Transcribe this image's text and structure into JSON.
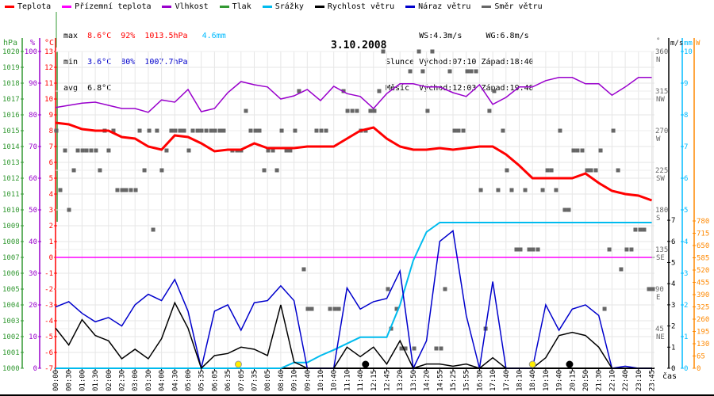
{
  "legend": [
    {
      "label": "Teplota",
      "color": "#ff0000"
    },
    {
      "label": "Přízemní teplota",
      "color": "#ff00ff"
    },
    {
      "label": "Vlhkost",
      "color": "#9900cc"
    },
    {
      "label": "Tlak",
      "color": "#339933"
    },
    {
      "label": "Srážky",
      "color": "#00bbee"
    },
    {
      "label": "Rychlost větru",
      "color": "#000000"
    },
    {
      "label": "Náraz větru",
      "color": "#0000cc"
    },
    {
      "label": "Směr větru",
      "color": "#666666"
    }
  ],
  "stats": {
    "max_label": "max",
    "min_label": "min",
    "avg_label": "avg",
    "max_temp": "8.6°C",
    "max_hum": "92%",
    "max_press": "1013.5hPa",
    "max_rain": "4.6mm",
    "min_temp": "3.6°C",
    "min_hum": "80%",
    "min_press": "1007.7hPa",
    "avg_temp": "6.8°C",
    "ws": "WS:4.3m/s",
    "wg": "WG:6.8m/s",
    "sun_label": "Slunce",
    "sun_rise": "Východ:07:10",
    "sun_set": "Západ:18:40",
    "moon_label": "Měsíc",
    "moon_rise": "Východ:12:03",
    "moon_set": "Západ:19:48"
  },
  "chart_data": {
    "type": "line",
    "title": "3.10.2008",
    "xlabel": "čas",
    "x_tick_labels": [
      "00:00",
      "00:30",
      "01:00",
      "01:30",
      "02:00",
      "02:30",
      "03:00",
      "03:30",
      "04:00",
      "04:30",
      "05:00",
      "05:35",
      "06:05",
      "06:35",
      "07:05",
      "07:35",
      "08:05",
      "08:40",
      "09:10",
      "09:40",
      "10:10",
      "10:40",
      "11:10",
      "11:40",
      "12:15",
      "12:45",
      "13:20",
      "13:50",
      "14:20",
      "14:55",
      "15:25",
      "15:55",
      "16:30",
      "17:10",
      "17:40",
      "18:10",
      "18:40",
      "19:10",
      "19:40",
      "20:15",
      "20:50",
      "21:30",
      "22:10",
      "22:40",
      "23:10",
      "23:45"
    ],
    "axes": {
      "hPa": {
        "label": "hPa",
        "range": [
          1000,
          1020
        ],
        "ticks": [
          1000,
          1001,
          1002,
          1003,
          1004,
          1005,
          1006,
          1007,
          1008,
          1009,
          1010,
          1011,
          1012,
          1013,
          1014,
          1015,
          1016,
          1017,
          1018,
          1019,
          1020
        ]
      },
      "pct": {
        "label": "%",
        "range": [
          0,
          100
        ],
        "ticks": [
          0,
          10,
          20,
          30,
          40,
          50,
          60,
          70,
          80,
          90,
          100
        ]
      },
      "temp": {
        "label": "°C",
        "range": [
          -7,
          13
        ],
        "ticks": [
          -7,
          -6,
          -5,
          -4,
          -3,
          -2,
          -1,
          0,
          1,
          2,
          3,
          4,
          5,
          6,
          7,
          8,
          9,
          10,
          11,
          12,
          13
        ]
      },
      "dir": {
        "label": "°",
        "range": [
          0,
          360
        ],
        "ticks": [
          {
            "v": 360,
            "t": "360",
            "c": "N"
          },
          {
            "v": 315,
            "t": "315",
            "c": "NW"
          },
          {
            "v": 270,
            "t": "270",
            "c": "W"
          },
          {
            "v": 225,
            "t": "225",
            "c": "SW"
          },
          {
            "v": 180,
            "t": "180",
            "c": "S"
          },
          {
            "v": 135,
            "t": "135",
            "c": "SE"
          },
          {
            "v": 90,
            "t": "90",
            "c": "E"
          },
          {
            "v": 45,
            "t": "45",
            "c": "NE"
          }
        ]
      },
      "ms": {
        "label": "m/s",
        "range": [
          0,
          7.5
        ],
        "ticks": [
          0,
          1,
          2,
          3,
          4,
          5,
          6,
          7
        ]
      },
      "mm": {
        "label": "mm",
        "range": [
          0,
          10
        ],
        "ticks": [
          0,
          1,
          2,
          3,
          4,
          5,
          6,
          7,
          8,
          9,
          10
        ]
      },
      "W": {
        "label": "W",
        "range": [
          0,
          780
        ],
        "ticks": [
          0,
          65,
          130,
          195,
          260,
          325,
          390,
          455,
          520,
          585,
          650,
          715,
          780
        ]
      }
    },
    "series": [
      {
        "name": "Vlhkost",
        "axis": "pct",
        "color": "#9900cc",
        "values": [
          82.3,
          83,
          83.7,
          84,
          83,
          82,
          82,
          80.8,
          84.7,
          84,
          88,
          81,
          82,
          87,
          90.5,
          89.5,
          88.8,
          85,
          86,
          88,
          84.5,
          89,
          86.7,
          85.8,
          82,
          86.7,
          89.8,
          89.8,
          88.8,
          88.8,
          87,
          85.8,
          89.5,
          83.3,
          85.5,
          88.8,
          88.8,
          90.8,
          91.8,
          91.8,
          89.8,
          89.8,
          86.2,
          88.8,
          91.8,
          91.8
        ]
      },
      {
        "name": "Teplota",
        "axis": "temp",
        "color": "#ff0000",
        "values": [
          8.5,
          8.4,
          8.1,
          8.0,
          8.0,
          7.6,
          7.5,
          7.0,
          6.8,
          7.7,
          7.6,
          7.2,
          6.7,
          6.8,
          6.8,
          7.2,
          6.9,
          6.9,
          6.9,
          7.0,
          7.0,
          7.0,
          7.5,
          8.0,
          8.2,
          7.5,
          7.0,
          6.8,
          6.8,
          6.9,
          6.8,
          6.9,
          7.0,
          7.0,
          6.5,
          5.8,
          5.0,
          5.0,
          5.0,
          5.0,
          5.3,
          4.7,
          4.2,
          4.0,
          3.9,
          3.6
        ]
      },
      {
        "name": "Přízemní teplota",
        "axis": "temp",
        "color": "#ff00ff",
        "values": [
          0,
          0,
          0,
          0,
          0,
          0,
          0,
          0,
          0,
          0,
          0,
          0,
          0,
          0,
          0,
          0,
          0,
          0,
          0,
          0,
          0,
          0,
          0,
          0,
          0,
          0,
          0,
          0,
          0,
          0,
          0,
          0,
          0,
          0,
          0,
          0,
          0,
          0,
          0,
          0,
          0,
          0,
          0,
          0,
          0,
          0
        ]
      },
      {
        "name": "Srážky",
        "axis": "mm",
        "color": "#00bbee",
        "values": [
          0,
          0,
          0,
          0,
          0,
          0,
          0,
          0,
          0,
          0,
          0,
          0,
          0,
          0,
          0,
          0,
          0,
          0,
          0.18,
          0.18,
          0.4,
          0.58,
          0.78,
          0.98,
          0.98,
          0.98,
          2.0,
          3.4,
          4.3,
          4.6,
          4.6,
          4.6,
          4.6,
          4.6,
          4.6,
          4.6,
          4.6,
          4.6,
          4.6,
          4.6,
          4.6,
          4.6,
          4.6,
          4.6,
          4.6,
          4.6
        ]
      },
      {
        "name": "Náraz větru",
        "axis": "ms",
        "color": "#0000cc",
        "values": [
          2.9,
          3.15,
          2.6,
          2.2,
          2.4,
          2.0,
          3.0,
          3.5,
          3.2,
          4.2,
          2.7,
          0,
          2.7,
          3.0,
          1.8,
          3.1,
          3.2,
          3.9,
          3.2,
          0,
          0,
          0,
          3.8,
          2.8,
          3.15,
          3.3,
          4.6,
          0,
          1.3,
          6.0,
          6.5,
          2.5,
          0,
          4.1,
          0,
          0,
          0,
          3.0,
          1.8,
          2.8,
          3.0,
          2.5,
          0,
          0.1,
          0,
          0
        ]
      },
      {
        "name": "Rychlost větru",
        "axis": "ms",
        "color": "#000000",
        "values": [
          1.9,
          1.1,
          2.3,
          1.55,
          1.3,
          0.45,
          0.9,
          0.45,
          1.4,
          3.1,
          1.9,
          0,
          0.6,
          0.7,
          1.0,
          0.9,
          0.6,
          3.0,
          0.3,
          0,
          0,
          0,
          1.0,
          0.55,
          1.0,
          0.2,
          1.3,
          0,
          0.2,
          0.2,
          0.1,
          0.2,
          0,
          0.5,
          0,
          0,
          0,
          0.5,
          1.55,
          1.7,
          1.55,
          1.0,
          0,
          0,
          0,
          0
        ]
      }
    ],
    "wind_direction": {
      "name": "Směr větru",
      "color": "#666666",
      "points": [
        [
          0.06,
          270
        ],
        [
          0.36,
          202.5
        ],
        [
          0.72,
          247.5
        ],
        [
          1.02,
          180
        ],
        [
          1.38,
          225
        ],
        [
          1.68,
          247.5
        ],
        [
          2.04,
          247.5
        ],
        [
          2.34,
          247.5
        ],
        [
          2.69,
          247.5
        ],
        [
          3.05,
          247.5
        ],
        [
          3.35,
          225
        ],
        [
          3.71,
          270
        ],
        [
          4.01,
          247.5
        ],
        [
          4.37,
          270
        ],
        [
          4.67,
          202.5
        ],
        [
          5.03,
          202.5
        ],
        [
          5.33,
          202.5
        ],
        [
          5.69,
          202.5
        ],
        [
          6.05,
          202.5
        ],
        [
          6.35,
          270
        ],
        [
          6.71,
          225
        ],
        [
          7.07,
          270
        ],
        [
          7.37,
          157.5
        ],
        [
          7.66,
          270
        ],
        [
          8.02,
          225
        ],
        [
          8.38,
          247.5
        ],
        [
          8.74,
          270
        ],
        [
          9.04,
          270
        ],
        [
          9.4,
          270
        ],
        [
          9.7,
          270
        ],
        [
          10.06,
          247.5
        ],
        [
          10.36,
          270
        ],
        [
          10.72,
          270
        ],
        [
          11.02,
          270
        ],
        [
          11.38,
          270
        ],
        [
          11.74,
          270
        ],
        [
          12.04,
          270
        ],
        [
          12.4,
          270
        ],
        [
          12.69,
          270
        ],
        [
          13.35,
          247.5
        ],
        [
          13.71,
          247.5
        ],
        [
          14.01,
          247.5
        ],
        [
          14.37,
          292.5
        ],
        [
          14.73,
          270
        ],
        [
          15.09,
          270
        ],
        [
          15.39,
          270
        ],
        [
          15.75,
          225
        ],
        [
          16.05,
          247.5
        ],
        [
          16.41,
          247.5
        ],
        [
          16.71,
          225
        ],
        [
          17.07,
          270
        ],
        [
          17.43,
          247.5
        ],
        [
          17.72,
          247.5
        ],
        [
          18.08,
          270
        ],
        [
          18.38,
          315
        ],
        [
          18.74,
          112.5
        ],
        [
          19.04,
          67.5
        ],
        [
          19.34,
          67.5
        ],
        [
          19.7,
          270
        ],
        [
          20.06,
          270
        ],
        [
          20.42,
          270
        ],
        [
          20.72,
          67.5
        ],
        [
          21.08,
          67.5
        ],
        [
          21.38,
          67.5
        ],
        [
          21.74,
          315
        ],
        [
          22.04,
          292.5
        ],
        [
          22.4,
          292.5
        ],
        [
          22.75,
          292.5
        ],
        [
          23.05,
          270
        ],
        [
          23.41,
          270
        ],
        [
          23.77,
          292.5
        ],
        [
          24.07,
          292.5
        ],
        [
          24.43,
          315
        ],
        [
          24.73,
          360
        ],
        [
          25.09,
          90
        ],
        [
          25.33,
          45
        ],
        [
          25.75,
          67.5
        ],
        [
          26.11,
          22.5
        ],
        [
          26.41,
          22.5
        ],
        [
          26.77,
          337.5
        ],
        [
          27.07,
          22.5
        ],
        [
          27.43,
          360
        ],
        [
          27.72,
          337.5
        ],
        [
          28.08,
          292.5
        ],
        [
          28.44,
          360
        ],
        [
          28.74,
          22.5
        ],
        [
          29.1,
          22.5
        ],
        [
          29.4,
          90
        ],
        [
          29.76,
          337.5
        ],
        [
          30.12,
          270
        ],
        [
          30.42,
          270
        ],
        [
          30.78,
          270
        ],
        [
          31.08,
          337.5
        ],
        [
          31.38,
          337.5
        ],
        [
          31.74,
          337.5
        ],
        [
          32.1,
          202.5
        ],
        [
          32.46,
          45
        ],
        [
          32.75,
          292.5
        ],
        [
          33.11,
          315
        ],
        [
          33.41,
          202.5
        ],
        [
          33.77,
          270
        ],
        [
          34.07,
          225
        ],
        [
          34.43,
          202.5
        ],
        [
          34.79,
          135
        ],
        [
          35.09,
          135
        ],
        [
          35.45,
          202.5
        ],
        [
          35.75,
          135
        ],
        [
          36.05,
          135
        ],
        [
          36.41,
          135
        ],
        [
          36.77,
          202.5
        ],
        [
          37.13,
          225
        ],
        [
          37.43,
          225
        ],
        [
          37.78,
          202.5
        ],
        [
          38.08,
          270
        ],
        [
          38.44,
          180
        ],
        [
          38.74,
          180
        ],
        [
          39.1,
          247.5
        ],
        [
          39.4,
          247.5
        ],
        [
          39.76,
          247.5
        ],
        [
          40.12,
          225
        ],
        [
          40.42,
          225
        ],
        [
          40.78,
          225
        ],
        [
          41.14,
          247.5
        ],
        [
          41.44,
          67.5
        ],
        [
          41.8,
          135
        ],
        [
          42.1,
          270
        ],
        [
          42.46,
          225
        ],
        [
          42.69,
          112.5
        ],
        [
          43.11,
          135
        ],
        [
          43.47,
          135
        ],
        [
          43.77,
          157.5
        ],
        [
          44.13,
          157.5
        ],
        [
          44.43,
          157.5
        ],
        [
          44.79,
          90
        ],
        [
          45.09,
          90
        ]
      ]
    },
    "markers": [
      {
        "name": "sunrise",
        "idx": 13.8,
        "color": "#ffee00"
      },
      {
        "name": "sunset",
        "idx": 36,
        "color": "#ffee00"
      },
      {
        "name": "moonrise",
        "idx": 23.4,
        "color": "#000000"
      },
      {
        "name": "moonset",
        "idx": 38.8,
        "color": "#000000"
      }
    ]
  }
}
